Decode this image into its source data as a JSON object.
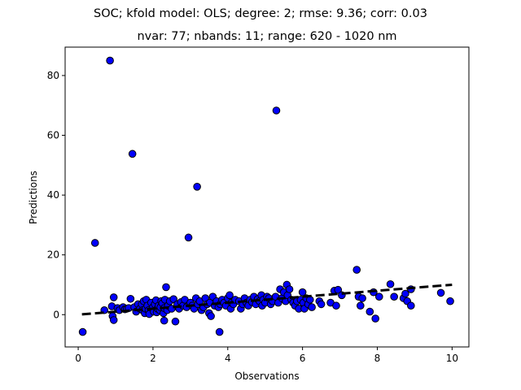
{
  "chart_data": {
    "type": "scatter",
    "title": "SOC; kfold model: OLS; degree: 2; rmse: 9.36; corr: 0.03",
    "subtitle": "nvar: 77; nbands: 11; range: 620 - 1020 nm",
    "xlabel": "Observations",
    "ylabel": "Predictions",
    "xlim": [
      -0.35,
      10.45
    ],
    "ylim": [
      -10.8,
      89.5
    ],
    "xticks": [
      "0",
      "2",
      "4",
      "6",
      "8",
      "10"
    ],
    "yticks": [
      "0",
      "20",
      "40",
      "60",
      "80"
    ],
    "grid": false,
    "colors": {
      "marker_fill": "#0000ff",
      "marker_edge": "#000000",
      "line": "#000000"
    },
    "fit_line": {
      "x": [
        0.1,
        10.0
      ],
      "y": [
        0.1,
        10.0
      ],
      "style": "dashed"
    },
    "points": [
      [
        0.12,
        -5.8
      ],
      [
        0.45,
        24.0
      ],
      [
        0.7,
        1.5
      ],
      [
        0.85,
        85.0
      ],
      [
        0.9,
        2.8
      ],
      [
        0.92,
        -0.5
      ],
      [
        0.95,
        -1.8
      ],
      [
        0.95,
        5.8
      ],
      [
        1.05,
        2.2
      ],
      [
        1.1,
        1.5
      ],
      [
        1.2,
        2.5
      ],
      [
        1.25,
        1.8
      ],
      [
        1.3,
        2.0
      ],
      [
        1.35,
        2.2
      ],
      [
        1.4,
        5.3
      ],
      [
        1.45,
        53.8
      ],
      [
        1.5,
        2.5
      ],
      [
        1.55,
        1.0
      ],
      [
        1.6,
        3.5
      ],
      [
        1.65,
        2.0
      ],
      [
        1.7,
        3.5
      ],
      [
        1.72,
        1.5
      ],
      [
        1.75,
        4.5
      ],
      [
        1.78,
        0.5
      ],
      [
        1.8,
        2.0
      ],
      [
        1.82,
        5.0
      ],
      [
        1.85,
        3.0
      ],
      [
        1.88,
        1.5
      ],
      [
        1.9,
        0.2
      ],
      [
        1.95,
        4.0
      ],
      [
        2.0,
        2.5
      ],
      [
        2.02,
        1.0
      ],
      [
        2.05,
        3.5
      ],
      [
        2.08,
        4.8
      ],
      [
        2.1,
        0.8
      ],
      [
        2.12,
        2.0
      ],
      [
        2.15,
        3.0
      ],
      [
        2.18,
        1.5
      ],
      [
        2.2,
        2.5
      ],
      [
        2.22,
        4.5
      ],
      [
        2.25,
        3.8
      ],
      [
        2.28,
        0.5
      ],
      [
        2.3,
        2.2
      ],
      [
        2.3,
        -2.0
      ],
      [
        2.32,
        5.0
      ],
      [
        2.35,
        9.2
      ],
      [
        2.38,
        1.5
      ],
      [
        2.4,
        3.0
      ],
      [
        2.45,
        4.5
      ],
      [
        2.5,
        2.0
      ],
      [
        2.55,
        5.2
      ],
      [
        2.6,
        -2.3
      ],
      [
        2.65,
        3.5
      ],
      [
        2.7,
        2.0
      ],
      [
        2.75,
        4.2
      ],
      [
        2.8,
        3.0
      ],
      [
        2.85,
        5.0
      ],
      [
        2.9,
        2.5
      ],
      [
        2.95,
        25.8
      ],
      [
        3.0,
        4.0
      ],
      [
        3.05,
        3.0
      ],
      [
        3.1,
        2.0
      ],
      [
        3.15,
        5.5
      ],
      [
        3.18,
        42.8
      ],
      [
        3.2,
        3.5
      ],
      [
        3.25,
        4.5
      ],
      [
        3.3,
        1.5
      ],
      [
        3.35,
        2.5
      ],
      [
        3.4,
        5.5
      ],
      [
        3.45,
        3.5
      ],
      [
        3.5,
        0.5
      ],
      [
        3.52,
        4.0
      ],
      [
        3.55,
        -0.5
      ],
      [
        3.6,
        6.0
      ],
      [
        3.65,
        3.0
      ],
      [
        3.7,
        4.5
      ],
      [
        3.75,
        2.5
      ],
      [
        3.78,
        -5.8
      ],
      [
        3.8,
        3.5
      ],
      [
        3.85,
        5.0
      ],
      [
        3.9,
        4.0
      ],
      [
        3.95,
        3.0
      ],
      [
        4.0,
        5.5
      ],
      [
        4.05,
        6.5
      ],
      [
        4.08,
        2.0
      ],
      [
        4.1,
        4.0
      ],
      [
        4.15,
        3.5
      ],
      [
        4.2,
        5.0
      ],
      [
        4.3,
        4.5
      ],
      [
        4.35,
        2.0
      ],
      [
        4.4,
        3.5
      ],
      [
        4.45,
        5.5
      ],
      [
        4.5,
        4.0
      ],
      [
        4.55,
        3.0
      ],
      [
        4.6,
        5.0
      ],
      [
        4.65,
        4.2
      ],
      [
        4.7,
        6.0
      ],
      [
        4.75,
        3.5
      ],
      [
        4.8,
        5.2
      ],
      [
        4.85,
        4.5
      ],
      [
        4.9,
        6.5
      ],
      [
        4.92,
        3.0
      ],
      [
        4.95,
        5.0
      ],
      [
        5.0,
        4.0
      ],
      [
        5.05,
        6.0
      ],
      [
        5.1,
        5.5
      ],
      [
        5.15,
        3.5
      ],
      [
        5.2,
        4.5
      ],
      [
        5.28,
        6.0
      ],
      [
        5.3,
        68.3
      ],
      [
        5.35,
        4.0
      ],
      [
        5.4,
        8.5
      ],
      [
        5.45,
        5.5
      ],
      [
        5.5,
        7.5
      ],
      [
        5.55,
        4.5
      ],
      [
        5.58,
        10.0
      ],
      [
        5.6,
        6.5
      ],
      [
        5.65,
        8.5
      ],
      [
        5.7,
        5.0
      ],
      [
        5.75,
        4.0
      ],
      [
        5.8,
        3.0
      ],
      [
        5.85,
        4.5
      ],
      [
        5.9,
        2.0
      ],
      [
        5.95,
        5.0
      ],
      [
        6.0,
        7.5
      ],
      [
        6.02,
        4.0
      ],
      [
        6.05,
        2.0
      ],
      [
        6.1,
        5.5
      ],
      [
        6.15,
        3.5
      ],
      [
        6.2,
        5.0
      ],
      [
        6.25,
        2.5
      ],
      [
        6.45,
        4.5
      ],
      [
        6.5,
        3.5
      ],
      [
        6.75,
        4.0
      ],
      [
        6.85,
        8.0
      ],
      [
        6.9,
        3.0
      ],
      [
        6.95,
        8.3
      ],
      [
        7.05,
        6.5
      ],
      [
        7.45,
        15.0
      ],
      [
        7.5,
        6.0
      ],
      [
        7.55,
        3.0
      ],
      [
        7.6,
        5.5
      ],
      [
        7.8,
        1.0
      ],
      [
        7.9,
        7.5
      ],
      [
        7.95,
        -1.3
      ],
      [
        8.05,
        6.0
      ],
      [
        8.35,
        10.2
      ],
      [
        8.45,
        6.0
      ],
      [
        8.7,
        5.5
      ],
      [
        8.75,
        7.0
      ],
      [
        8.8,
        4.5
      ],
      [
        8.9,
        8.5
      ],
      [
        8.9,
        3.0
      ],
      [
        9.7,
        7.3
      ],
      [
        9.95,
        4.5
      ]
    ]
  }
}
